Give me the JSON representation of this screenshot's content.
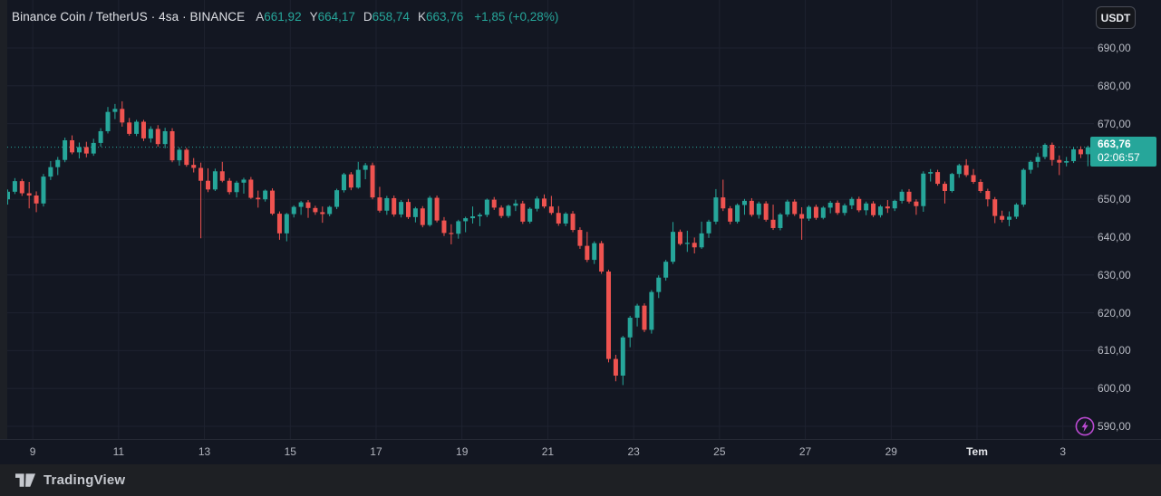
{
  "header": {
    "symbol_title": "Binance Coin / TetherUS · 4sa · BINANCE",
    "ohlc": [
      {
        "label": "A",
        "value": "661,92"
      },
      {
        "label": "Y",
        "value": "664,17"
      },
      {
        "label": "D",
        "value": "658,74"
      },
      {
        "label": "K",
        "value": "663,76"
      }
    ],
    "change": "+1,85 (+0,28%)"
  },
  "toolbar": {
    "currency_button": "USDT"
  },
  "price_scale": {
    "labels": [
      "690,00",
      "680,00",
      "670,00",
      "660,00",
      "650,00",
      "640,00",
      "630,00",
      "620,00",
      "610,00",
      "600,00",
      "590,00"
    ],
    "values": [
      690,
      680,
      670,
      660,
      650,
      640,
      630,
      620,
      610,
      600,
      590
    ],
    "current_price": "663,76",
    "countdown": "02:06:57"
  },
  "time_scale": {
    "labels": [
      "9",
      "11",
      "13",
      "15",
      "17",
      "19",
      "21",
      "23",
      "25",
      "27",
      "29",
      "Tem",
      "3"
    ],
    "bold_labels": [
      "Tem"
    ]
  },
  "footer": {
    "brand": "TradingView"
  },
  "colors": {
    "up": "#26a69a",
    "down": "#ef5350",
    "background": "#131722",
    "grid": "#1e2230",
    "axis_text": "#b2b5be",
    "badge": "#26a69a",
    "boost": "#bb4ad2"
  },
  "chart_data": {
    "type": "candlestick",
    "title": "Binance Coin / TetherUS",
    "exchange": "BINANCE",
    "interval": "4sa",
    "last_close": 663.76,
    "open": 661.92,
    "high": 664.17,
    "low": 658.74,
    "close": 663.76,
    "change_text": "+1,85 (+0,28%)",
    "y_range": [
      586,
      694
    ],
    "grid": true,
    "x_tick_labels": [
      "9",
      "11",
      "13",
      "15",
      "17",
      "19",
      "21",
      "23",
      "25",
      "27",
      "29",
      "Tem",
      "3"
    ],
    "x_tick_indices": [
      3.5,
      15.5,
      27.5,
      39.5,
      51.5,
      63.5,
      75.5,
      87.5,
      99.5,
      111.5,
      123.5,
      135.5,
      147.5
    ],
    "candles": [
      [
        650.0,
        652.6,
        648.6,
        652.0
      ],
      [
        652.0,
        655.6,
        651.4,
        654.8
      ],
      [
        654.8,
        655.4,
        650.9,
        651.6
      ],
      [
        651.6,
        654.6,
        647.6,
        651.0
      ],
      [
        651.0,
        652.1,
        646.6,
        648.9
      ],
      [
        648.9,
        656.7,
        648.1,
        656.0
      ],
      [
        656.0,
        660.1,
        655.1,
        658.5
      ],
      [
        658.5,
        661.2,
        656.4,
        660.4
      ],
      [
        660.4,
        666.3,
        659.8,
        665.6
      ],
      [
        665.6,
        666.9,
        661.9,
        662.4
      ],
      [
        662.4,
        665.0,
        660.8,
        663.8
      ],
      [
        663.8,
        665.2,
        661.1,
        662.1
      ],
      [
        662.1,
        666.0,
        661.5,
        664.9
      ],
      [
        664.9,
        668.8,
        663.9,
        668.0
      ],
      [
        668.0,
        674.4,
        667.4,
        673.1
      ],
      [
        673.1,
        675.2,
        671.2,
        673.9
      ],
      [
        673.9,
        675.9,
        669.2,
        670.3
      ],
      [
        670.3,
        671.5,
        666.8,
        667.3
      ],
      [
        667.3,
        671.0,
        666.7,
        670.5
      ],
      [
        670.5,
        671.0,
        665.4,
        666.1
      ],
      [
        666.1,
        669.3,
        665.0,
        668.6
      ],
      [
        668.6,
        669.6,
        663.9,
        664.6
      ],
      [
        664.6,
        668.9,
        663.5,
        668.0
      ],
      [
        668.0,
        668.8,
        659.8,
        660.3
      ],
      [
        660.3,
        663.7,
        658.9,
        663.1
      ],
      [
        663.1,
        663.6,
        658.6,
        659.1
      ],
      [
        659.1,
        660.9,
        657.1,
        658.3
      ],
      [
        658.3,
        659.7,
        639.7,
        654.9
      ],
      [
        654.9,
        658.2,
        651.9,
        652.6
      ],
      [
        652.6,
        658.1,
        652.2,
        657.4
      ],
      [
        657.4,
        659.9,
        654.5,
        654.9
      ],
      [
        654.9,
        655.6,
        651.3,
        651.9
      ],
      [
        651.9,
        654.9,
        650.5,
        654.4
      ],
      [
        654.4,
        655.7,
        651.5,
        655.2
      ],
      [
        655.2,
        655.9,
        650.1,
        650.4
      ],
      [
        650.4,
        652.3,
        647.8,
        650.0
      ],
      [
        650.0,
        652.6,
        649.4,
        652.3
      ],
      [
        652.3,
        652.9,
        645.8,
        646.2
      ],
      [
        646.2,
        646.8,
        639.3,
        641.0
      ],
      [
        641.0,
        646.4,
        638.9,
        646.1
      ],
      [
        646.1,
        648.4,
        645.2,
        648.0
      ],
      [
        648.0,
        649.6,
        645.9,
        649.2
      ],
      [
        649.2,
        649.8,
        645.1,
        647.7
      ],
      [
        647.7,
        648.3,
        645.9,
        646.6
      ],
      [
        646.6,
        648.1,
        643.8,
        646.1
      ],
      [
        646.1,
        648.3,
        645.5,
        648.0
      ],
      [
        648.0,
        652.8,
        647.4,
        652.4
      ],
      [
        652.4,
        657.0,
        651.8,
        656.6
      ],
      [
        656.6,
        657.2,
        652.4,
        653.1
      ],
      [
        653.1,
        659.9,
        652.8,
        657.8
      ],
      [
        657.8,
        659.6,
        655.3,
        659.0
      ],
      [
        659.0,
        659.7,
        650.0,
        650.5
      ],
      [
        650.5,
        653.3,
        646.5,
        647.0
      ],
      [
        647.0,
        650.9,
        645.9,
        650.3
      ],
      [
        650.3,
        651.0,
        645.4,
        646.0
      ],
      [
        646.0,
        649.8,
        645.2,
        649.3
      ],
      [
        649.3,
        650.1,
        644.8,
        645.3
      ],
      [
        645.3,
        648.0,
        643.9,
        647.6
      ],
      [
        647.6,
        648.2,
        642.6,
        643.2
      ],
      [
        643.2,
        650.9,
        642.8,
        650.4
      ],
      [
        650.4,
        651.0,
        643.9,
        644.4
      ],
      [
        644.4,
        645.3,
        640.3,
        641.1
      ],
      [
        641.1,
        643.4,
        638.1,
        640.9
      ],
      [
        640.9,
        644.6,
        639.6,
        644.2
      ],
      [
        644.2,
        645.4,
        641.3,
        645.0
      ],
      [
        645.0,
        648.1,
        643.6,
        645.5
      ],
      [
        645.5,
        646.4,
        642.9,
        645.9
      ],
      [
        645.9,
        650.2,
        645.3,
        649.9
      ],
      [
        649.9,
        650.6,
        647.2,
        647.8
      ],
      [
        647.8,
        648.4,
        645.0,
        645.6
      ],
      [
        645.6,
        648.6,
        645.1,
        648.3
      ],
      [
        648.3,
        649.9,
        646.9,
        648.9
      ],
      [
        648.9,
        649.6,
        643.5,
        644.1
      ],
      [
        644.1,
        647.9,
        643.6,
        647.5
      ],
      [
        647.5,
        650.8,
        646.8,
        650.2
      ],
      [
        650.2,
        651.3,
        647.6,
        648.1
      ],
      [
        648.1,
        650.9,
        645.9,
        646.4
      ],
      [
        646.4,
        648.2,
        643.0,
        643.6
      ],
      [
        643.6,
        646.6,
        642.9,
        646.2
      ],
      [
        646.2,
        646.9,
        641.3,
        641.9
      ],
      [
        641.9,
        642.6,
        636.9,
        637.7
      ],
      [
        637.7,
        641.4,
        633.4,
        634.0
      ],
      [
        634.0,
        638.9,
        632.9,
        638.4
      ],
      [
        638.4,
        639.0,
        630.3,
        630.9
      ],
      [
        630.9,
        631.4,
        606.9,
        607.8
      ],
      [
        607.8,
        608.9,
        601.9,
        603.4
      ],
      [
        603.4,
        613.9,
        600.9,
        613.5
      ],
      [
        613.5,
        619.2,
        610.9,
        618.7
      ],
      [
        618.7,
        622.4,
        616.4,
        621.9
      ],
      [
        621.9,
        622.5,
        614.9,
        615.5
      ],
      [
        615.5,
        626.0,
        614.5,
        625.5
      ],
      [
        625.5,
        629.9,
        623.9,
        629.3
      ],
      [
        629.3,
        634.0,
        628.5,
        633.5
      ],
      [
        633.5,
        644.0,
        632.9,
        641.4
      ],
      [
        641.4,
        642.0,
        637.8,
        638.2
      ],
      [
        638.2,
        641.7,
        636.1,
        638.5
      ],
      [
        638.5,
        639.9,
        635.7,
        637.3
      ],
      [
        637.3,
        644.1,
        636.9,
        641.0
      ],
      [
        641.0,
        644.6,
        639.8,
        644.1
      ],
      [
        644.1,
        652.7,
        643.4,
        650.5
      ],
      [
        650.5,
        655.2,
        646.9,
        647.6
      ],
      [
        647.6,
        648.2,
        643.4,
        644.1
      ],
      [
        644.1,
        648.9,
        643.6,
        648.5
      ],
      [
        648.5,
        650.1,
        645.9,
        649.6
      ],
      [
        649.6,
        650.3,
        645.4,
        645.9
      ],
      [
        645.9,
        649.4,
        644.9,
        648.9
      ],
      [
        648.9,
        649.5,
        644.1,
        644.6
      ],
      [
        644.6,
        648.6,
        641.9,
        642.4
      ],
      [
        642.4,
        646.4,
        641.8,
        646.0
      ],
      [
        646.0,
        649.9,
        645.4,
        649.4
      ],
      [
        649.4,
        650.0,
        645.6,
        646.1
      ],
      [
        646.1,
        647.9,
        639.3,
        644.9
      ],
      [
        644.9,
        648.4,
        644.3,
        648.0
      ],
      [
        648.0,
        648.6,
        644.6,
        645.1
      ],
      [
        645.1,
        648.2,
        644.7,
        647.8
      ],
      [
        647.8,
        649.6,
        646.3,
        649.1
      ],
      [
        649.1,
        649.7,
        645.9,
        646.4
      ],
      [
        646.4,
        648.9,
        645.7,
        648.4
      ],
      [
        648.4,
        650.6,
        647.4,
        650.1
      ],
      [
        650.1,
        650.7,
        646.6,
        647.1
      ],
      [
        647.1,
        649.4,
        645.8,
        648.9
      ],
      [
        648.9,
        649.5,
        645.3,
        645.8
      ],
      [
        645.8,
        648.5,
        645.2,
        648.1
      ],
      [
        648.1,
        649.8,
        646.4,
        647.6
      ],
      [
        647.6,
        649.9,
        646.9,
        649.6
      ],
      [
        649.6,
        652.6,
        648.9,
        652.0
      ],
      [
        652.0,
        652.7,
        648.9,
        649.4
      ],
      [
        649.4,
        650.0,
        645.9,
        648.2
      ],
      [
        648.2,
        657.4,
        646.7,
        656.8
      ],
      [
        656.8,
        658.0,
        654.7,
        657.2
      ],
      [
        657.2,
        657.8,
        653.6,
        654.1
      ],
      [
        654.1,
        654.7,
        648.9,
        652.2
      ],
      [
        652.2,
        657.0,
        651.8,
        656.7
      ],
      [
        656.7,
        659.4,
        655.7,
        659.0
      ],
      [
        659.0,
        660.6,
        655.9,
        656.4
      ],
      [
        656.4,
        658.0,
        654.1,
        654.6
      ],
      [
        654.6,
        655.3,
        651.7,
        652.2
      ],
      [
        652.2,
        652.8,
        648.1,
        650.0
      ],
      [
        650.0,
        650.6,
        643.7,
        645.6
      ],
      [
        645.6,
        647.0,
        643.9,
        644.6
      ],
      [
        644.6,
        646.8,
        642.9,
        645.4
      ],
      [
        645.4,
        649.0,
        644.8,
        648.6
      ],
      [
        648.6,
        658.2,
        648.0,
        657.8
      ],
      [
        657.8,
        660.3,
        656.8,
        659.9
      ],
      [
        659.9,
        662.3,
        658.4,
        661.2
      ],
      [
        661.2,
        664.8,
        660.6,
        664.4
      ],
      [
        664.4,
        665.0,
        658.9,
        660.4
      ],
      [
        660.4,
        661.6,
        656.4,
        659.7
      ],
      [
        659.7,
        661.2,
        658.7,
        660.1
      ],
      [
        660.1,
        663.8,
        659.6,
        663.2
      ],
      [
        663.2,
        664.0,
        660.9,
        661.91
      ],
      [
        661.92,
        664.17,
        658.74,
        663.76
      ]
    ]
  }
}
